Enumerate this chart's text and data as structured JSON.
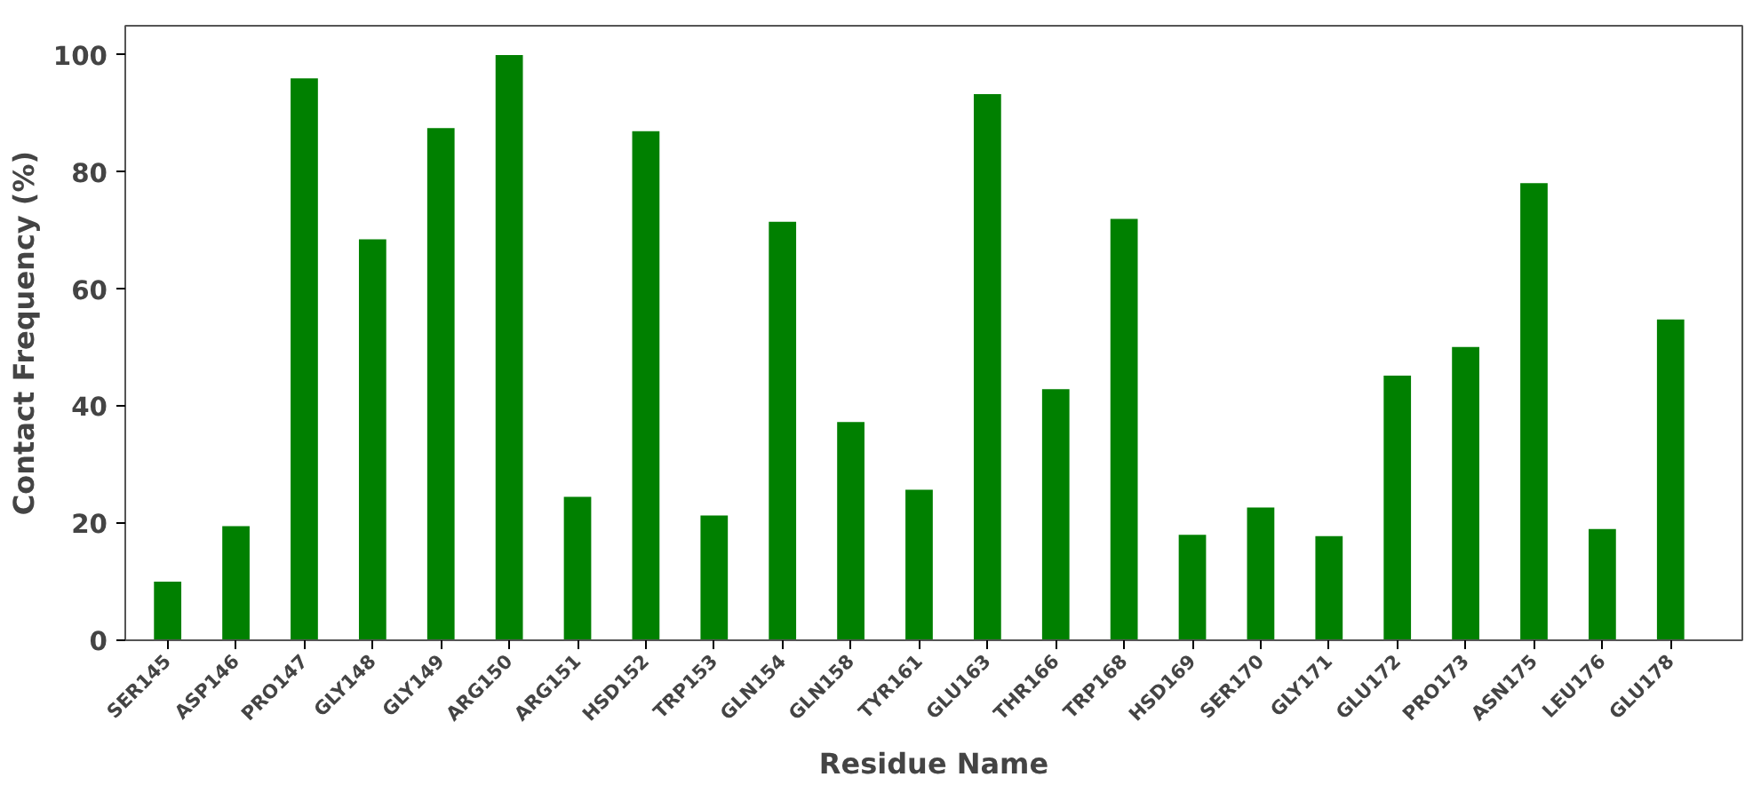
{
  "chart_data": {
    "type": "bar",
    "xlabel": "Residue Name",
    "ylabel": "Contact Frequency (%)",
    "categories": [
      "SER145",
      "ASP146",
      "PRO147",
      "GLY148",
      "GLY149",
      "ARG150",
      "ARG151",
      "HSD152",
      "TRP153",
      "GLN154",
      "GLN158",
      "TYR161",
      "GLU163",
      "THR166",
      "TRP168",
      "HSD169",
      "SER170",
      "GLY171",
      "GLU172",
      "PRO173",
      "ASN175",
      "LEU176",
      "GLU178"
    ],
    "values": [
      10,
      19.5,
      96,
      68.5,
      87.5,
      100,
      24.5,
      87,
      21.3,
      71.5,
      37.3,
      25.7,
      93.3,
      42.9,
      72,
      18,
      22.7,
      17.8,
      45.2,
      50.1,
      78.1,
      19,
      54.8
    ],
    "color": "#008000",
    "ylim": [
      0,
      105
    ],
    "yticks": [
      0,
      20,
      40,
      60,
      80,
      100
    ],
    "grid": false
  }
}
